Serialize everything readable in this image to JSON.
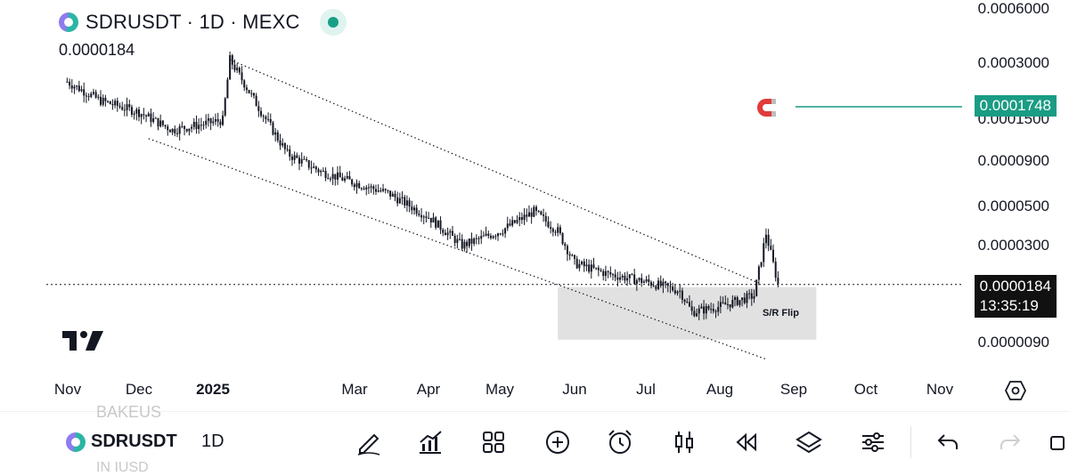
{
  "header": {
    "title": "SDRUSDT · 1D · MEXC",
    "last_value": "0.0000184"
  },
  "y_axis": {
    "labels": [
      "0.0006000",
      "0.0003000",
      "0.0001500",
      "0.0000900",
      "0.0000500",
      "0.0000300",
      "0.0000090"
    ],
    "alert_price": "0.0001748",
    "current_price": "0.0000184",
    "countdown": "13:35:19"
  },
  "x_axis": {
    "labels": [
      "Nov",
      "Dec",
      "2025",
      "Mar",
      "Apr",
      "May",
      "Jun",
      "Jul",
      "Aug",
      "Sep",
      "Oct",
      "Nov"
    ]
  },
  "annotations": {
    "zone_label": "S/R Flip"
  },
  "toolbar": {
    "symbol": "SDRUSDT",
    "timeframe": "1D",
    "ghost_above": "BAKEUS",
    "ghost_below": "IN IUSD"
  },
  "colors": {
    "accent": "#1a9c84",
    "candle": "#131722",
    "magnet": "#e03c3c",
    "zone": "#e1e1e1"
  },
  "chart_data": {
    "type": "candlestick",
    "symbol": "SDRUSDT",
    "timeframe": "1D",
    "exchange": "MEXC",
    "scale": "log",
    "current_price": 1.84e-05,
    "alert_price": 0.0001748,
    "x_range": [
      "2024-11",
      "2025-11"
    ],
    "trend": [
      {
        "date": "2024-11-01",
        "close": 0.000235
      },
      {
        "date": "2024-11-15",
        "close": 0.000185
      },
      {
        "date": "2024-12-01",
        "close": 0.00016
      },
      {
        "date": "2024-12-15",
        "close": 0.000128
      },
      {
        "date": "2025-01-05",
        "close": 0.000145
      },
      {
        "date": "2025-01-08",
        "close": 0.00031
      },
      {
        "date": "2025-01-20",
        "close": 0.00017
      },
      {
        "date": "2025-02-01",
        "close": 9.5e-05
      },
      {
        "date": "2025-02-15",
        "close": 7.6e-05
      },
      {
        "date": "2025-03-01",
        "close": 6.6e-05
      },
      {
        "date": "2025-03-15",
        "close": 5.8e-05
      },
      {
        "date": "2025-04-01",
        "close": 4.3e-05
      },
      {
        "date": "2025-04-15",
        "close": 3e-05
      },
      {
        "date": "2025-05-01",
        "close": 3.6e-05
      },
      {
        "date": "2025-05-15",
        "close": 4.6e-05
      },
      {
        "date": "2025-05-25",
        "close": 3.6e-05
      },
      {
        "date": "2025-06-01",
        "close": 2.4e-05
      },
      {
        "date": "2025-06-15",
        "close": 2.1e-05
      },
      {
        "date": "2025-07-01",
        "close": 1.9e-05
      },
      {
        "date": "2025-07-15",
        "close": 1.7e-05
      },
      {
        "date": "2025-07-20",
        "close": 1.3e-05
      },
      {
        "date": "2025-08-01",
        "close": 1.4e-05
      },
      {
        "date": "2025-08-15",
        "close": 1.6e-05
      },
      {
        "date": "2025-08-20",
        "close": 3.5e-05
      },
      {
        "date": "2025-08-25",
        "close": 1.84e-05
      }
    ],
    "channel": {
      "upper": [
        {
          "date": "2025-01-08",
          "price": 0.00031
        },
        {
          "date": "2025-08-18",
          "price": 1.85e-05
        }
      ],
      "lower": [
        {
          "date": "2024-12-05",
          "price": 0.000115
        },
        {
          "date": "2025-08-20",
          "price": 7.2e-06
        }
      ]
    },
    "zone": {
      "label": "S/R Flip",
      "from": "2025-05-25",
      "to": "2025-09-10",
      "top": 1.78e-05,
      "bottom": 9.2e-06
    }
  }
}
